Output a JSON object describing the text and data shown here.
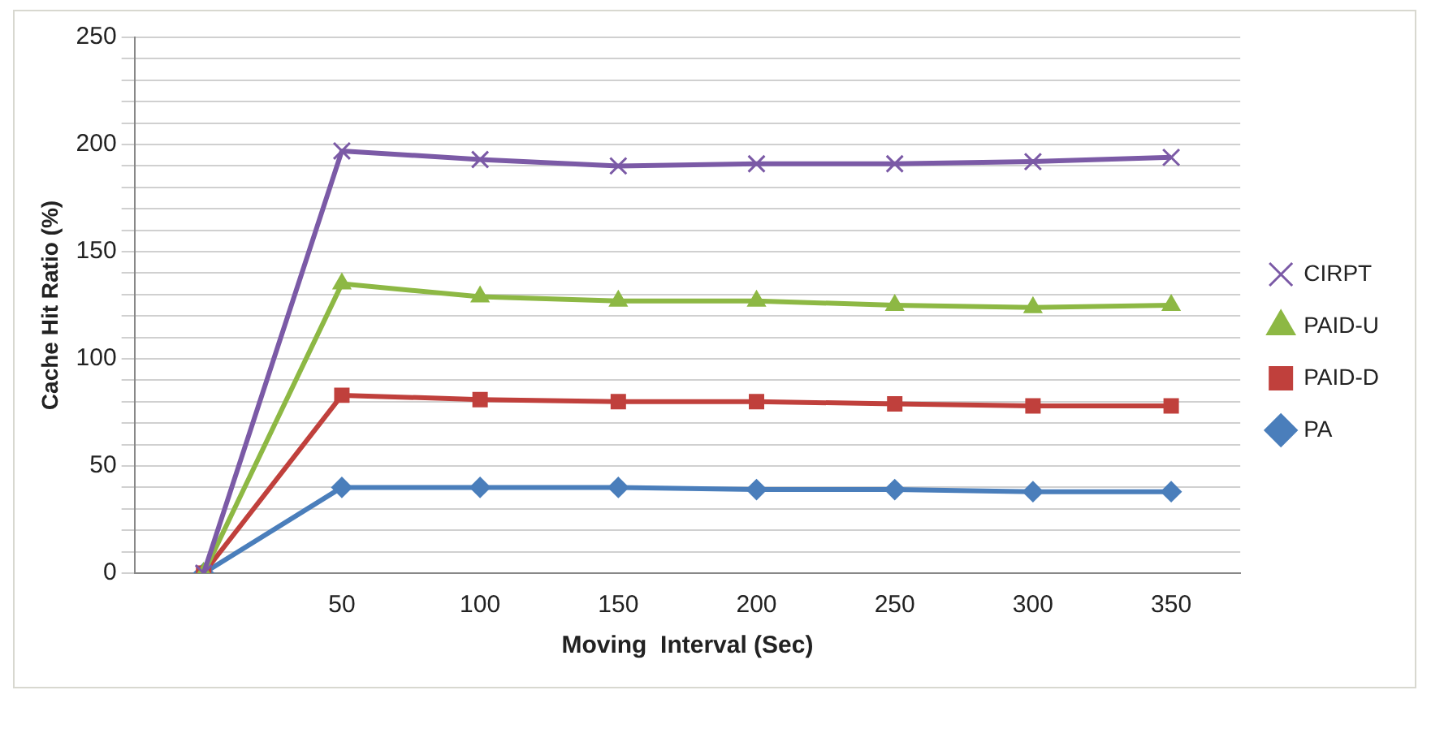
{
  "chart_data": {
    "type": "line",
    "xlabel": "Moving  Interval (Sec)",
    "ylabel": "Cache Hit Ratio (%)",
    "categories": [
      null,
      "50",
      "100",
      "150",
      "200",
      "250",
      "300",
      "350"
    ],
    "series": [
      {
        "name": "CIRPT",
        "color": "#7b5aa6",
        "marker": "cross",
        "values": [
          0,
          197,
          193,
          190,
          191,
          191,
          192,
          194
        ]
      },
      {
        "name": "PAID-U",
        "color": "#8db844",
        "marker": "triangle",
        "values": [
          0,
          135,
          129,
          127,
          127,
          125,
          124,
          125
        ]
      },
      {
        "name": "PAID-D",
        "color": "#c0403c",
        "marker": "square",
        "values": [
          0,
          83,
          81,
          80,
          80,
          79,
          78,
          78
        ]
      },
      {
        "name": "PA",
        "color": "#4a7ebb",
        "marker": "diamond",
        "values": [
          0,
          40,
          40,
          40,
          39,
          39,
          38,
          38
        ]
      }
    ],
    "ylim": [
      0,
      250
    ],
    "yticks": [
      0,
      {
        "value": 10,
        "label": null
      },
      {
        "value": 20,
        "label": null
      },
      {
        "value": 30,
        "label": null
      },
      {
        "value": 40,
        "label": null
      },
      50,
      {
        "value": 60,
        "label": null
      },
      {
        "value": 70,
        "label": null
      },
      {
        "value": 80,
        "label": null
      },
      {
        "value": 90,
        "label": null
      },
      100,
      {
        "value": 110,
        "label": null
      },
      {
        "value": 120,
        "label": null
      },
      {
        "value": 130,
        "label": null
      },
      {
        "value": 140,
        "label": null
      },
      150,
      {
        "value": 160,
        "label": null
      },
      {
        "value": 170,
        "label": null
      },
      {
        "value": 180,
        "label": null
      },
      {
        "value": 190,
        "label": null
      },
      200,
      {
        "value": 210,
        "label": null
      },
      {
        "value": 220,
        "label": null
      },
      {
        "value": 230,
        "label": null
      },
      {
        "value": 240,
        "label": null
      },
      250
    ],
    "grid": "y",
    "legend": "right",
    "line_style": "solid"
  }
}
